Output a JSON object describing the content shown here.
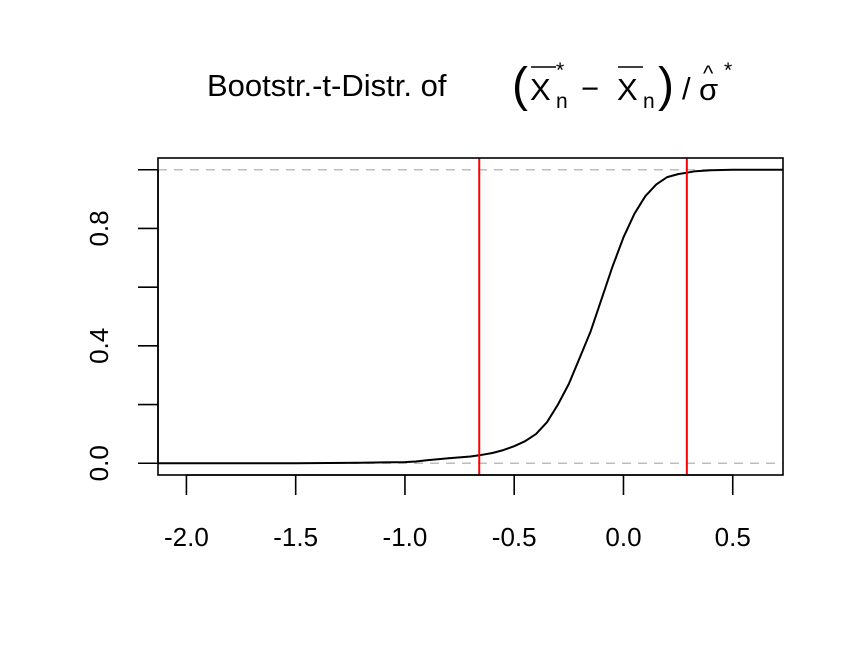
{
  "chart_data": {
    "type": "line",
    "title": {
      "prefix": "Bootstr.-t-Distr. of",
      "sym_x": "X",
      "sym_n": "n",
      "sym_star": "*",
      "sym_minus": "−",
      "sym_sigma": "σ",
      "sym_hat": "^",
      "open_paren": "(",
      "close_paren": ")",
      "slash": "/"
    },
    "xlabel": "",
    "ylabel": "",
    "xlim": [
      -2.13,
      0.73
    ],
    "ylim": [
      -0.04,
      1.04
    ],
    "xticks": [
      -2.0,
      -1.5,
      -1.0,
      -0.5,
      0.0,
      0.5
    ],
    "xtick_labels": [
      "-2.0",
      "-1.5",
      "-1.0",
      "-0.5",
      "0.0",
      "0.5"
    ],
    "yticks": [
      0.0,
      0.2,
      0.4,
      0.6,
      0.8,
      1.0
    ],
    "ytick_labels": [
      "0.0",
      "",
      "0.4",
      "",
      "0.8",
      ""
    ],
    "hlines": [
      0,
      1
    ],
    "vlines": [
      -0.66,
      0.29
    ],
    "colors": {
      "curve": "#000000",
      "vline": "#ff0000",
      "hline": "#bebebe",
      "frame": "#000000"
    },
    "series": [
      {
        "x": [
          -2.13,
          -1.8,
          -1.5,
          -1.2,
          -1.0,
          -0.95,
          -0.9,
          -0.8,
          -0.7,
          -0.66,
          -0.6,
          -0.55,
          -0.5,
          -0.45,
          -0.4,
          -0.35,
          -0.3,
          -0.25,
          -0.2,
          -0.15,
          -0.1,
          -0.05,
          0.0,
          0.05,
          0.1,
          0.15,
          0.2,
          0.25,
          0.29,
          0.33,
          0.4,
          0.5,
          0.6,
          0.73
        ],
        "y": [
          0.0,
          0.0,
          0.0,
          0.002,
          0.004,
          0.006,
          0.01,
          0.017,
          0.023,
          0.027,
          0.035,
          0.045,
          0.058,
          0.075,
          0.1,
          0.14,
          0.2,
          0.27,
          0.36,
          0.45,
          0.56,
          0.67,
          0.77,
          0.85,
          0.91,
          0.95,
          0.975,
          0.985,
          0.99,
          0.995,
          0.998,
          1.0,
          1.0,
          1.0
        ]
      }
    ]
  }
}
